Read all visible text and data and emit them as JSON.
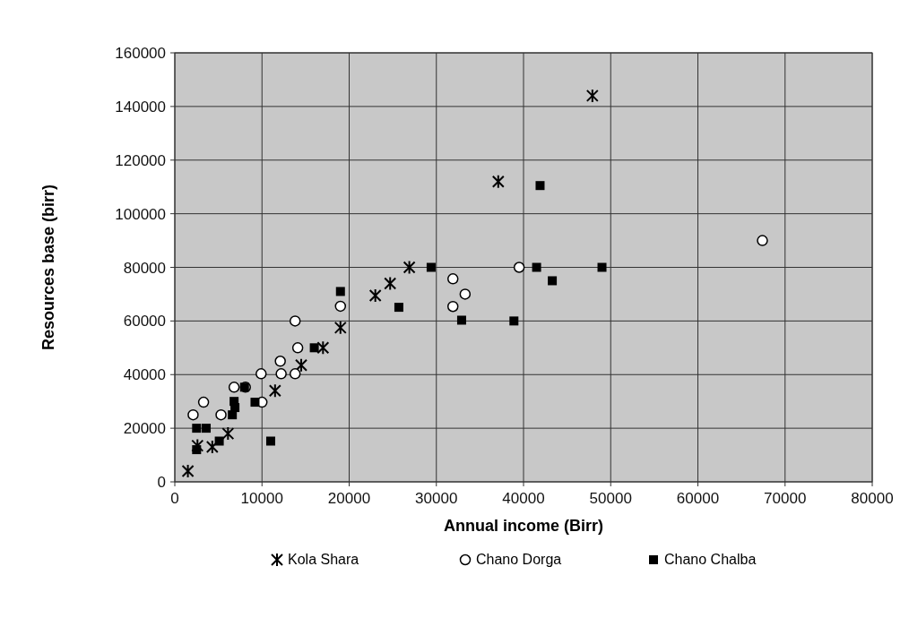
{
  "chart_data": {
    "type": "scatter",
    "xlabel": "Annual income (Birr)",
    "ylabel": "Resources base (birr)",
    "xlim": [
      0,
      80000
    ],
    "xticks": [
      0,
      10000,
      20000,
      30000,
      40000,
      50000,
      60000,
      70000,
      80000
    ],
    "ylim": [
      0,
      160000
    ],
    "yticks": [
      0,
      20000,
      40000,
      60000,
      80000,
      100000,
      120000,
      140000,
      160000
    ],
    "grid": true,
    "legend": "bottom",
    "series": [
      {
        "name": "Kola Shara",
        "color": "#000000",
        "marker": "cross",
        "x": [
          1500,
          2600,
          4300,
          6100,
          11500,
          14500,
          17000,
          19000,
          23000,
          24700,
          26900,
          37100,
          47900
        ],
        "values": [
          4000,
          13500,
          13000,
          18000,
          34000,
          43500,
          50000,
          57500,
          69500,
          74000,
          80000,
          112000,
          144000
        ]
      },
      {
        "name": "Chano Dorga",
        "color": "#ffffff",
        "marker": "circle",
        "x": [
          2100,
          3300,
          5300,
          6800,
          8100,
          10000,
          9900,
          12200,
          13800,
          12100,
          14100,
          13800,
          19000,
          31900,
          33300,
          31900,
          39500,
          67400
        ],
        "values": [
          25000,
          29700,
          25000,
          35300,
          35300,
          29700,
          40300,
          40300,
          40300,
          45000,
          50000,
          60000,
          65500,
          75700,
          70000,
          65400,
          80000,
          90000
        ]
      },
      {
        "name": "Chano Chalba",
        "color": "#000000",
        "marker": "square",
        "x": [
          2500,
          3600,
          2500,
          5100,
          6800,
          6900,
          6600,
          8000,
          9200,
          11000,
          16000,
          19000,
          25700,
          29400,
          32900,
          38900,
          41500,
          43300,
          49000,
          41900
        ],
        "values": [
          20000,
          20000,
          12000,
          15200,
          30000,
          27700,
          25000,
          35300,
          29700,
          15200,
          50000,
          71000,
          65100,
          80000,
          60300,
          60000,
          80000,
          75000,
          80000,
          110500
        ]
      }
    ]
  }
}
